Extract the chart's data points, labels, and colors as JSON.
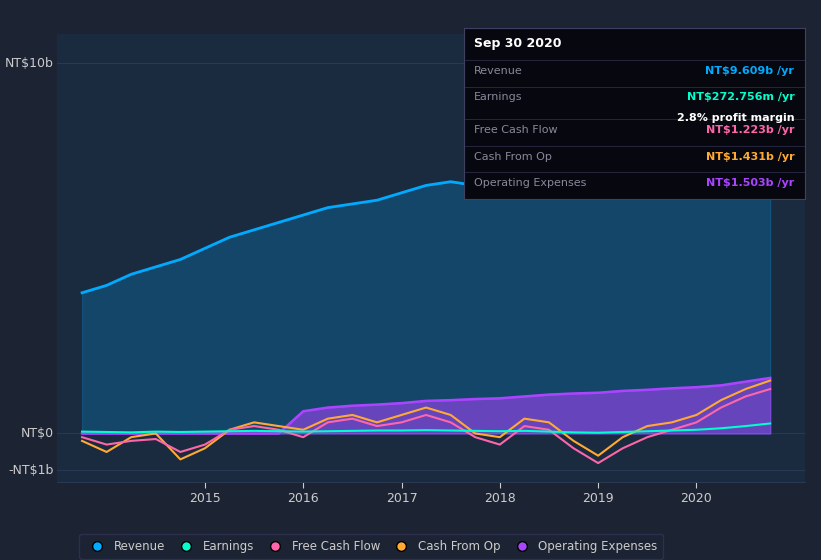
{
  "bg_color": "#1c2333",
  "plot_bg_color": "#1a2a3f",
  "text_color": "#cccccc",
  "grid_color": "#2a3a55",
  "ylabel_top": "NT$10b",
  "ylabel_zero": "NT$0",
  "ylabel_neg": "-NT$1b",
  "xlim": [
    2013.5,
    2021.1
  ],
  "ylim": [
    -1.3,
    10.8
  ],
  "revenue_color": "#00aaff",
  "earnings_color": "#00ffcc",
  "fcf_color": "#ff66aa",
  "cashfromop_color": "#ffaa33",
  "opex_color": "#aa44ff",
  "revenue": {
    "x": [
      2013.75,
      2014.0,
      2014.25,
      2014.5,
      2014.75,
      2015.0,
      2015.25,
      2015.5,
      2015.75,
      2016.0,
      2016.25,
      2016.5,
      2016.75,
      2017.0,
      2017.25,
      2017.5,
      2017.75,
      2018.0,
      2018.25,
      2018.5,
      2018.75,
      2019.0,
      2019.25,
      2019.5,
      2019.75,
      2020.0,
      2020.25,
      2020.5,
      2020.75
    ],
    "y": [
      3.8,
      4.0,
      4.3,
      4.5,
      4.7,
      5.0,
      5.3,
      5.5,
      5.7,
      5.9,
      6.1,
      6.2,
      6.3,
      6.5,
      6.7,
      6.8,
      6.7,
      6.8,
      7.0,
      7.1,
      7.3,
      8.0,
      8.8,
      9.0,
      8.8,
      8.7,
      8.9,
      9.3,
      9.6
    ]
  },
  "earnings": {
    "x": [
      2013.75,
      2014.0,
      2014.25,
      2014.5,
      2014.75,
      2015.0,
      2015.25,
      2015.5,
      2015.75,
      2016.0,
      2016.25,
      2016.5,
      2016.75,
      2017.0,
      2017.25,
      2017.5,
      2017.75,
      2018.0,
      2018.25,
      2018.5,
      2018.75,
      2019.0,
      2019.25,
      2019.5,
      2019.75,
      2020.0,
      2020.25,
      2020.5,
      2020.75
    ],
    "y": [
      0.05,
      0.04,
      0.03,
      0.05,
      0.04,
      0.05,
      0.06,
      0.07,
      0.06,
      0.05,
      0.06,
      0.07,
      0.08,
      0.08,
      0.09,
      0.08,
      0.07,
      0.06,
      0.07,
      0.05,
      0.03,
      0.02,
      0.04,
      0.06,
      0.08,
      0.1,
      0.14,
      0.2,
      0.27
    ]
  },
  "fcf": {
    "x": [
      2013.75,
      2014.0,
      2014.25,
      2014.5,
      2014.75,
      2015.0,
      2015.25,
      2015.5,
      2015.75,
      2016.0,
      2016.25,
      2016.5,
      2016.75,
      2017.0,
      2017.25,
      2017.5,
      2017.75,
      2018.0,
      2018.25,
      2018.5,
      2018.75,
      2019.0,
      2019.25,
      2019.5,
      2019.75,
      2020.0,
      2020.25,
      2020.5,
      2020.75
    ],
    "y": [
      -0.1,
      -0.3,
      -0.2,
      -0.15,
      -0.5,
      -0.3,
      0.1,
      0.2,
      0.1,
      -0.1,
      0.3,
      0.4,
      0.2,
      0.3,
      0.5,
      0.3,
      -0.1,
      -0.3,
      0.2,
      0.1,
      -0.4,
      -0.8,
      -0.4,
      -0.1,
      0.1,
      0.3,
      0.7,
      1.0,
      1.2
    ]
  },
  "cashfromop": {
    "x": [
      2013.75,
      2014.0,
      2014.25,
      2014.5,
      2014.75,
      2015.0,
      2015.25,
      2015.5,
      2015.75,
      2016.0,
      2016.25,
      2016.5,
      2016.75,
      2017.0,
      2017.25,
      2017.5,
      2017.75,
      2018.0,
      2018.25,
      2018.5,
      2018.75,
      2019.0,
      2019.25,
      2019.5,
      2019.75,
      2020.0,
      2020.25,
      2020.5,
      2020.75
    ],
    "y": [
      -0.2,
      -0.5,
      -0.1,
      0.0,
      -0.7,
      -0.4,
      0.1,
      0.3,
      0.2,
      0.1,
      0.4,
      0.5,
      0.3,
      0.5,
      0.7,
      0.5,
      0.0,
      -0.1,
      0.4,
      0.3,
      -0.2,
      -0.6,
      -0.1,
      0.2,
      0.3,
      0.5,
      0.9,
      1.2,
      1.43
    ]
  },
  "opex": {
    "x": [
      2013.75,
      2014.0,
      2014.25,
      2014.5,
      2014.75,
      2015.0,
      2015.25,
      2015.5,
      2015.75,
      2016.0,
      2016.25,
      2016.5,
      2016.75,
      2017.0,
      2017.25,
      2017.5,
      2017.75,
      2018.0,
      2018.25,
      2018.5,
      2018.75,
      2019.0,
      2019.25,
      2019.5,
      2019.75,
      2020.0,
      2020.25,
      2020.5,
      2020.75
    ],
    "y": [
      0.0,
      0.0,
      0.0,
      0.0,
      0.0,
      0.0,
      0.0,
      0.0,
      0.0,
      0.6,
      0.7,
      0.75,
      0.78,
      0.82,
      0.88,
      0.9,
      0.93,
      0.95,
      1.0,
      1.05,
      1.08,
      1.1,
      1.15,
      1.18,
      1.22,
      1.25,
      1.3,
      1.4,
      1.5
    ]
  },
  "legend": [
    {
      "label": "Revenue",
      "color": "#00aaff"
    },
    {
      "label": "Earnings",
      "color": "#00ffcc"
    },
    {
      "label": "Free Cash Flow",
      "color": "#ff66aa"
    },
    {
      "label": "Cash From Op",
      "color": "#ffaa33"
    },
    {
      "label": "Operating Expenses",
      "color": "#aa44ff"
    }
  ],
  "tooltip": {
    "date": "Sep 30 2020",
    "revenue_label": "Revenue",
    "revenue_value": "NT$9.609b",
    "revenue_color": "#00aaff",
    "earnings_label": "Earnings",
    "earnings_value": "NT$272.756m",
    "earnings_color": "#00ffcc",
    "margin_text": "2.8% profit margin",
    "fcf_label": "Free Cash Flow",
    "fcf_value": "NT$1.223b",
    "fcf_color": "#ff66aa",
    "cop_label": "Cash From Op",
    "cop_value": "NT$1.431b",
    "cop_color": "#ffaa33",
    "opex_label": "Operating Expenses",
    "opex_value": "NT$1.503b",
    "opex_color": "#aa44ff"
  }
}
